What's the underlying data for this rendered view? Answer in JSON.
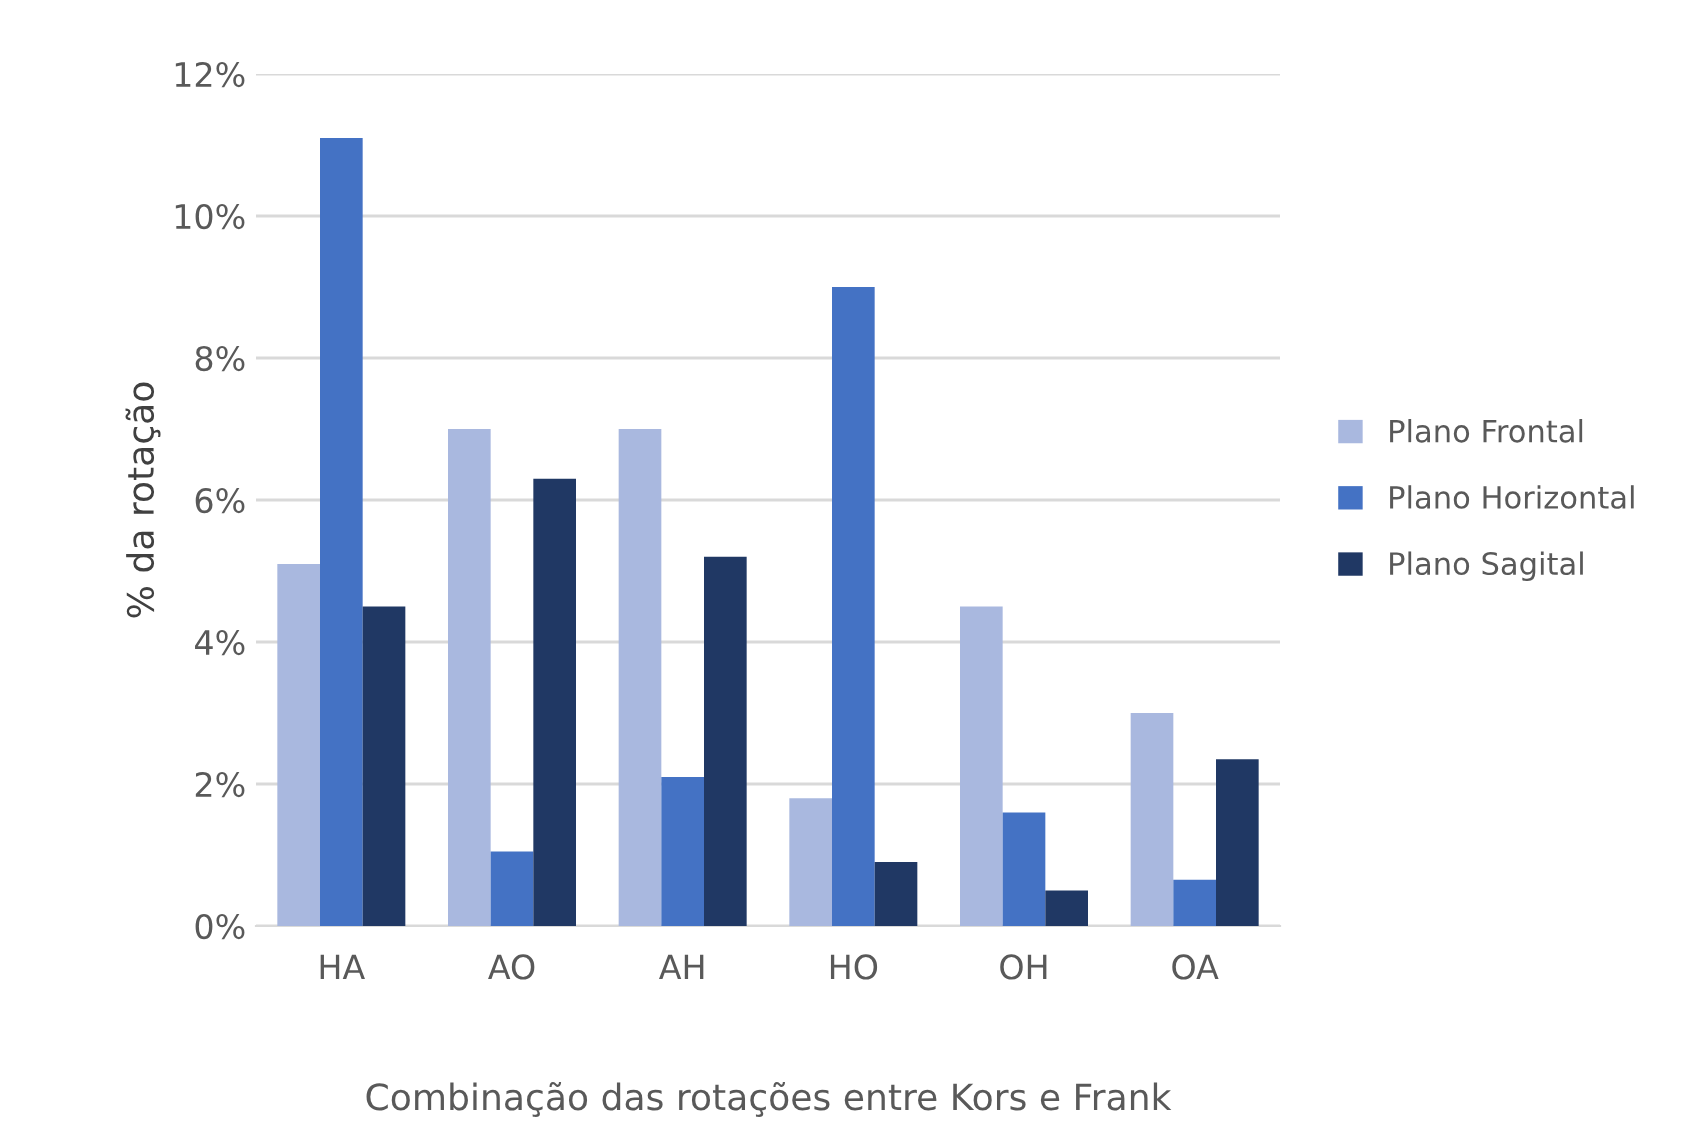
{
  "chart_data": {
    "type": "bar",
    "xlabel": "Combinação das rotações entre Kors e Frank",
    "ylabel": "% da rotação",
    "categories": [
      "HA",
      "AO",
      "AH",
      "HO",
      "OH",
      "OA"
    ],
    "series": [
      {
        "name": "Plano Frontal",
        "color": "#a9b8df",
        "values": [
          5.1,
          7.0,
          7.0,
          1.8,
          4.5,
          3.0
        ]
      },
      {
        "name": "Plano Horizontal",
        "color": "#4472c4",
        "values": [
          11.1,
          1.05,
          2.1,
          9.0,
          1.6,
          0.65
        ]
      },
      {
        "name": "Plano Sagital",
        "color": "#203864",
        "values": [
          4.5,
          6.3,
          5.2,
          0.9,
          0.5,
          2.35
        ]
      }
    ],
    "ylim": [
      0,
      12
    ],
    "yticks": [
      {
        "value": 0,
        "label": "0%"
      },
      {
        "value": 2,
        "label": "2%"
      },
      {
        "value": 4,
        "label": "4%"
      },
      {
        "value": 6,
        "label": "6%"
      },
      {
        "value": 8,
        "label": "8%"
      },
      {
        "value": 10,
        "label": "10%"
      },
      {
        "value": 12,
        "label": "12%"
      }
    ],
    "grid": "y",
    "legend": "right"
  }
}
